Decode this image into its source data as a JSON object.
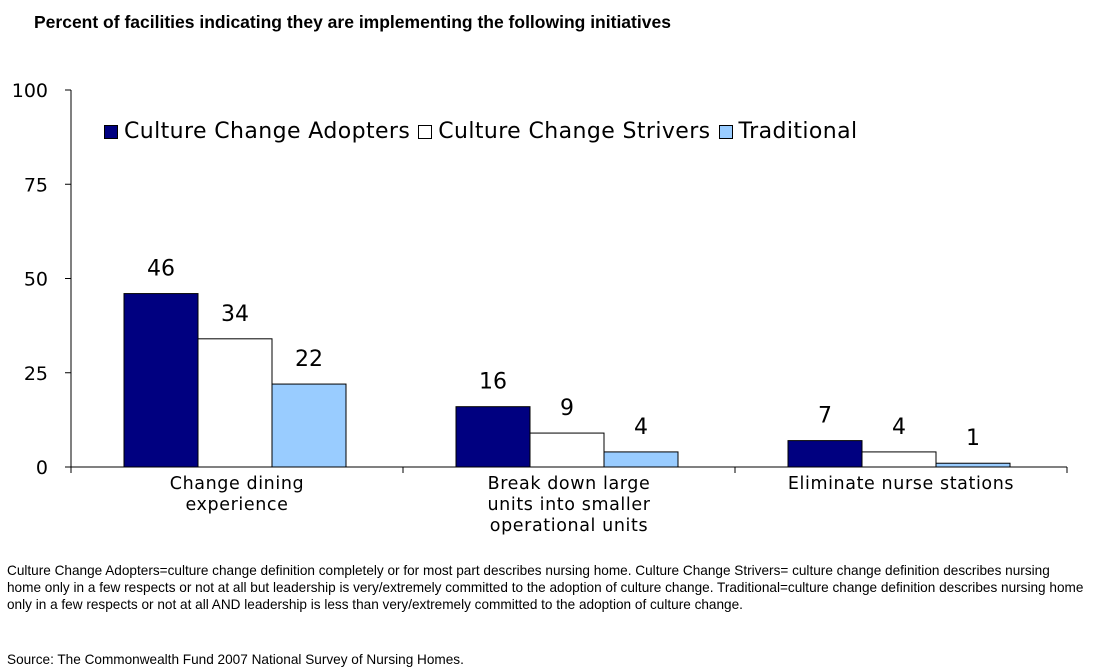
{
  "chart_data": {
    "type": "bar",
    "title": "Percent of facilities indicating they are implementing the following initiatives",
    "categories": [
      "Change dining experience",
      "Break down large units into smaller operational units",
      "Eliminate nurse stations"
    ],
    "category_lines": [
      [
        "Change dining",
        "experience"
      ],
      [
        "Break down large",
        "units into smaller",
        "operational units"
      ],
      [
        "Eliminate nurse stations"
      ]
    ],
    "series": [
      {
        "name": "Culture Change Adopters",
        "values": [
          46,
          16,
          7
        ],
        "color": "#000080"
      },
      {
        "name": "Culture Change Strivers",
        "values": [
          34,
          9,
          4
        ],
        "color": "#ffffff"
      },
      {
        "name": "Traditional",
        "values": [
          22,
          4,
          1
        ],
        "color": "#99ccff"
      }
    ],
    "ylim": [
      0,
      100
    ],
    "yticks": [
      0,
      25,
      50,
      75,
      100
    ],
    "legend_position": "top",
    "grid": false
  },
  "footnote": "Culture Change Adopters=culture change definition completely or for most part describes nursing home. Culture Change Strivers= culture change definition describes nursing home only in a few respects or not at all but leadership is very/extremely committed to the adoption of culture change.  Traditional=culture change definition describes nursing home only in a few respects or not at all AND leadership is less than very/extremely committed to the adoption of culture change.",
  "source": "Source: The Commonwealth Fund 2007 National Survey of Nursing Homes."
}
